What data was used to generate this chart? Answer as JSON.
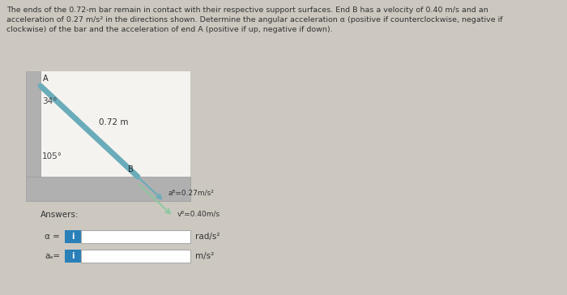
{
  "title_text": "The ends of the 0.72-m bar remain in contact with their respective support surfaces. End B has a velocity of 0.40 m/s and an\nacceleration of 0.27 m/s² in the directions shown. Determine the angular acceleration α (positive if counterclockwise, negative if\nclockwise) of the bar and the acceleration of end A (positive if up, negative if down).",
  "bg_color": "#ccc8c0",
  "diagram_bg": "#f0eeeb",
  "bar_color": "#6aacba",
  "bar_color2": "#7abcaa",
  "wall_color": "#aaaaaa",
  "arrow_color_a": "#6aacba",
  "arrow_color_v": "#90c8a0",
  "aB_label": "aᴮ=0.27m/s²",
  "vB_label": "vᴮ=0.40m/s",
  "angle_A": "34°",
  "angle_B": "105°",
  "bar_label": "0.72 m",
  "A_label": "A",
  "B_label": "B",
  "answers_label": "Answers:",
  "alpha_label": "α =",
  "aA_label": "aₐ=",
  "rad_unit": "rad/s²",
  "ms_unit": "m/s²",
  "button_color": "#2980b9",
  "input_bg": "#ffffff",
  "input_edge": "#aaaaaa",
  "text_color": "#333333"
}
